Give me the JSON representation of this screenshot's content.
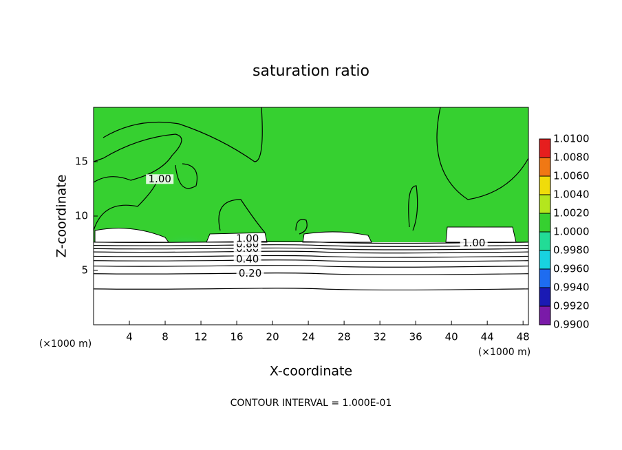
{
  "chart_data": {
    "type": "contour",
    "title": "saturation ratio",
    "x_label": "X-coordinate",
    "y_label": "Z-coordinate",
    "x_unit_left": "(×1000 m)",
    "x_unit_right": "(×1000 m)",
    "footer": "CONTOUR INTERVAL = 1.000E-01",
    "xlim": [
      0,
      48.6
    ],
    "xticks": [
      4,
      8,
      12,
      16,
      20,
      24,
      28,
      32,
      36,
      40,
      44,
      48
    ],
    "ylim": [
      0,
      20
    ],
    "yticks": [
      5,
      10,
      15
    ],
    "contours": {
      "levels": [
        0.1,
        0.2,
        0.3,
        0.4,
        0.5,
        0.6,
        0.7,
        0.8,
        0.9
      ],
      "z": [
        3.3,
        4.7,
        5.4,
        5.9,
        6.3,
        6.7,
        7.0,
        7.3,
        7.6
      ]
    },
    "contour_labels": [
      {
        "text": "0.20",
        "x": 17.5,
        "z": 4.7
      },
      {
        "text": "0.40",
        "x": 17.2,
        "z": 6.0
      },
      {
        "text": "0.60",
        "x": 17.2,
        "z": 7.0
      },
      {
        "text": "0.80",
        "x": 17.2,
        "z": 7.4
      },
      {
        "text": "1.00",
        "x": 17.2,
        "z": 7.9
      },
      {
        "text": "1.00",
        "x": 42.5,
        "z": 7.5
      },
      {
        "text": "1.00",
        "x": 7.4,
        "z": 13.4
      }
    ],
    "colorbar": {
      "lim": [
        0.99,
        1.01
      ],
      "ticks": [
        {
          "value": 1.01,
          "label": "1.0100"
        },
        {
          "value": 1.008,
          "label": "1.0080"
        },
        {
          "value": 1.006,
          "label": "1.0060"
        },
        {
          "value": 1.004,
          "label": "1.0040"
        },
        {
          "value": 1.002,
          "label": "1.0020"
        },
        {
          "value": 1.0,
          "label": "1.0000"
        },
        {
          "value": 0.998,
          "label": "0.9980"
        },
        {
          "value": 0.996,
          "label": "0.9960"
        },
        {
          "value": 0.994,
          "label": "0.9940"
        },
        {
          "value": 0.992,
          "label": "0.9920"
        },
        {
          "value": 0.99,
          "label": "0.9900"
        }
      ],
      "colors": [
        "#7a1aa8",
        "#1a1ab4",
        "#1e6cf0",
        "#18d2e0",
        "#22dc96",
        "#36d030",
        "#b4e61e",
        "#f0dc0a",
        "#f07814",
        "#e61e1e"
      ]
    }
  }
}
